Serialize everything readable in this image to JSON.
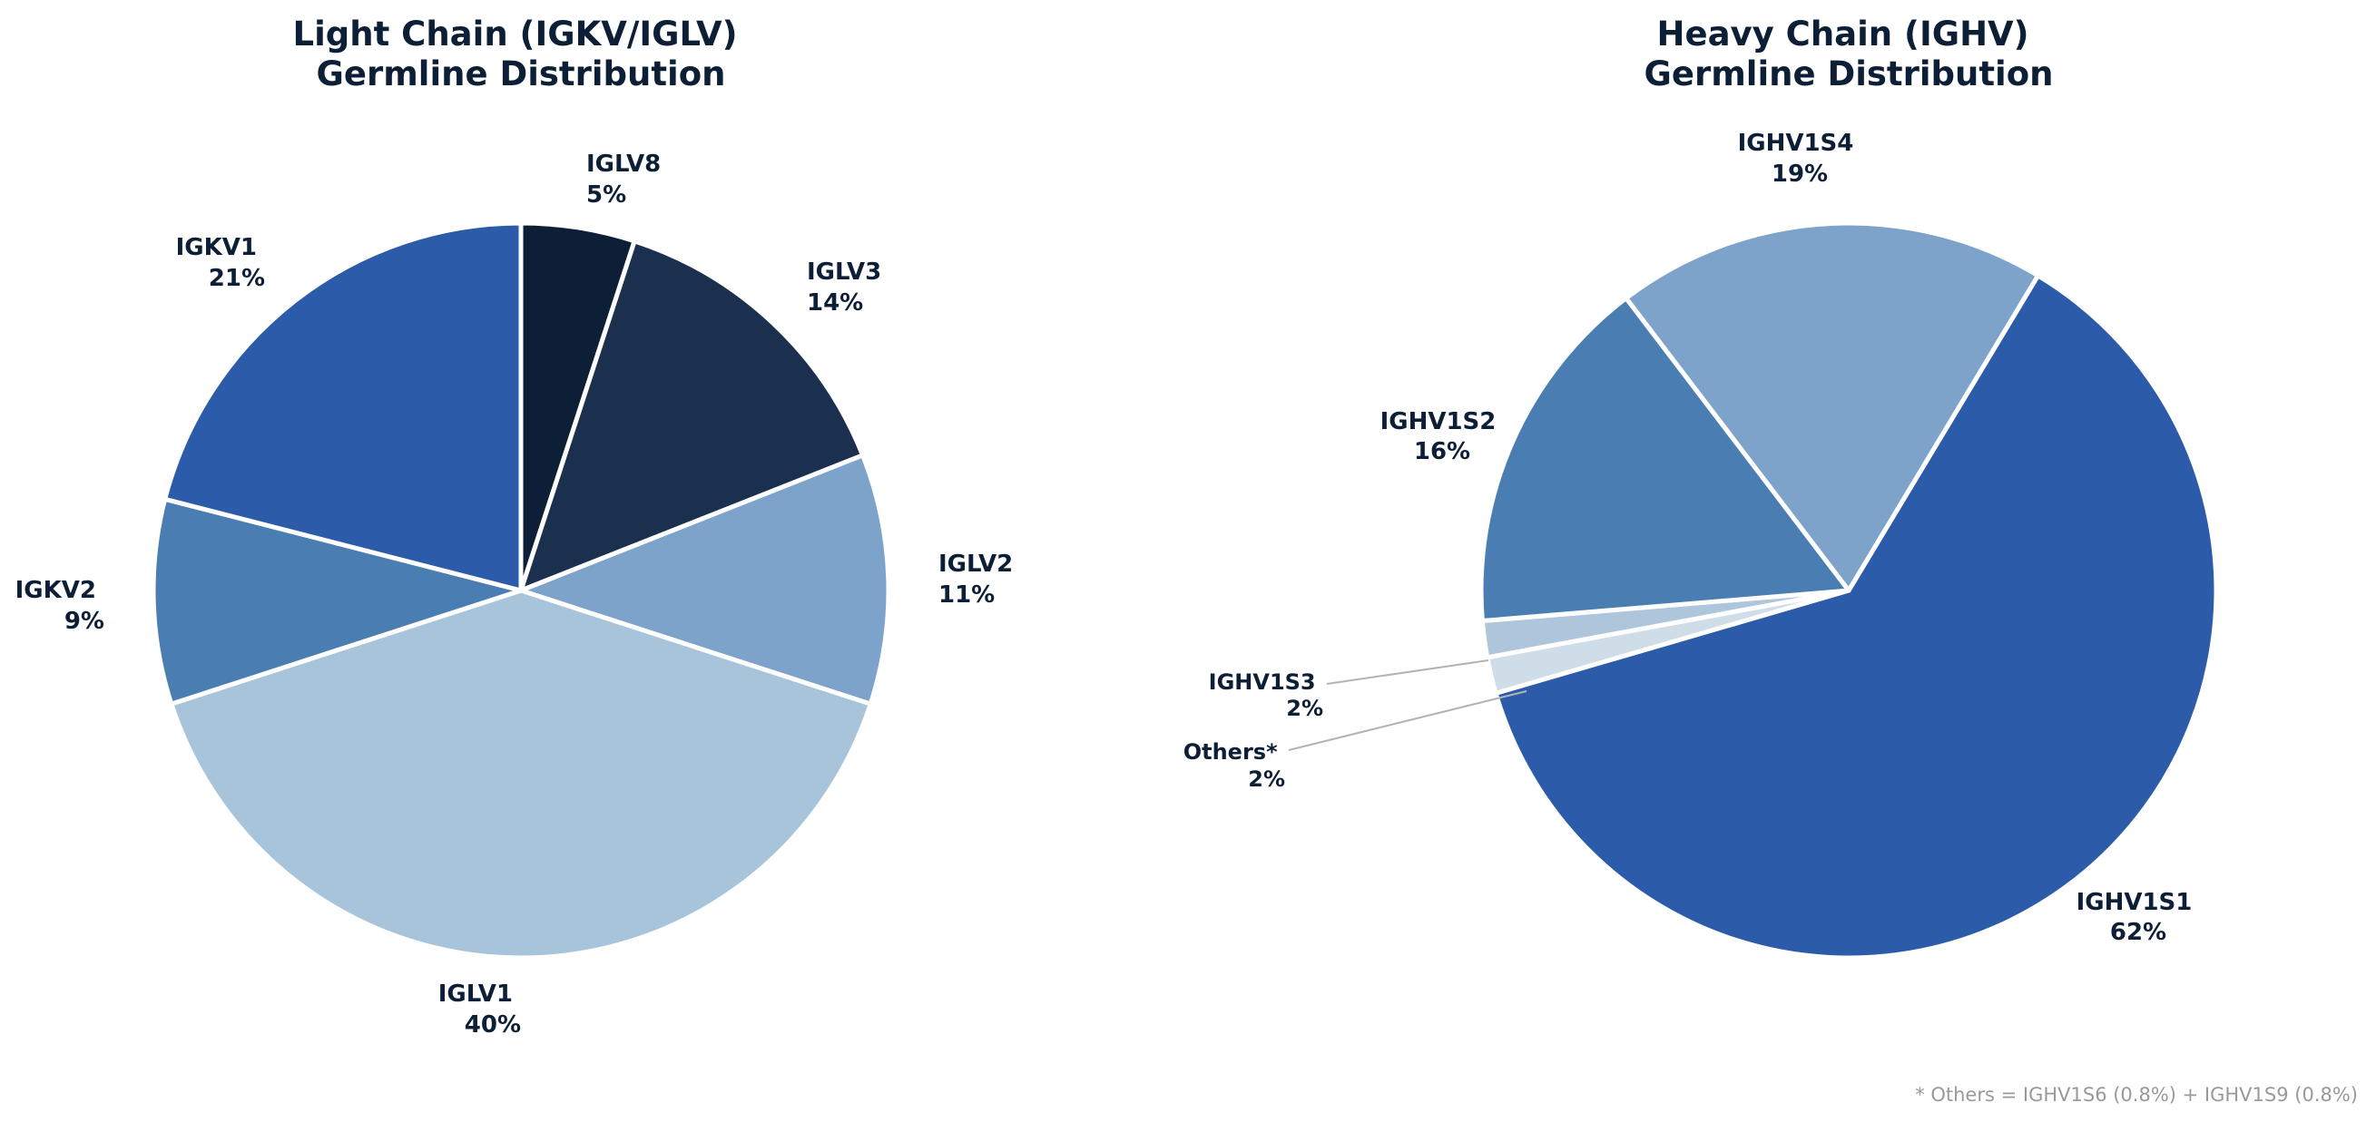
{
  "chart_data": [
    {
      "type": "pie",
      "title": [
        "Light Chain (IGKV/IGLV)",
        "Germline Distribution"
      ],
      "slices": [
        {
          "label": "IGLV8",
          "value": 5,
          "pct_label": "5%",
          "color": "#0d1f36"
        },
        {
          "label": "IGLV3",
          "value": 14,
          "pct_label": "14%",
          "color": "#1b2f4e"
        },
        {
          "label": "IGLV2",
          "value": 11,
          "pct_label": "11%",
          "color": "#7da3cb"
        },
        {
          "label": "IGLV1",
          "value": 40,
          "pct_label": "40%",
          "color": "#a8c4da"
        },
        {
          "label": "IGKV2",
          "value": 9,
          "pct_label": "9%",
          "color": "#4a7eb3"
        },
        {
          "label": "IGKV1",
          "value": 21,
          "pct_label": "21%",
          "color": "#2b5ba9"
        }
      ],
      "start_angle_deg": 90,
      "direction": "clockwise"
    },
    {
      "type": "pie",
      "title": [
        "Heavy Chain (IGHV)",
        "Germline Distribution"
      ],
      "slices": [
        {
          "label": "IGHV1S1",
          "value": 62,
          "pct_label": "62%",
          "color": "#2b5ba9"
        },
        {
          "label": "Others*",
          "value": 1.6,
          "pct_label": "2%",
          "color": "#cfdde9"
        },
        {
          "label": "IGHV1S3",
          "value": 1.6,
          "pct_label": "2%",
          "color": "#adc6dc"
        },
        {
          "label": "IGHV1S2",
          "value": 16,
          "pct_label": "16%",
          "color": "#4a7eb3"
        },
        {
          "label": "IGHV1S4",
          "value": 19,
          "pct_label": "19%",
          "color": "#7da3cb"
        }
      ],
      "start_angle_deg": 59,
      "direction": "clockwise"
    }
  ],
  "footnote": "* Others = IGHV1S6 (0.8%) + IGHV1S9 (0.8%)"
}
